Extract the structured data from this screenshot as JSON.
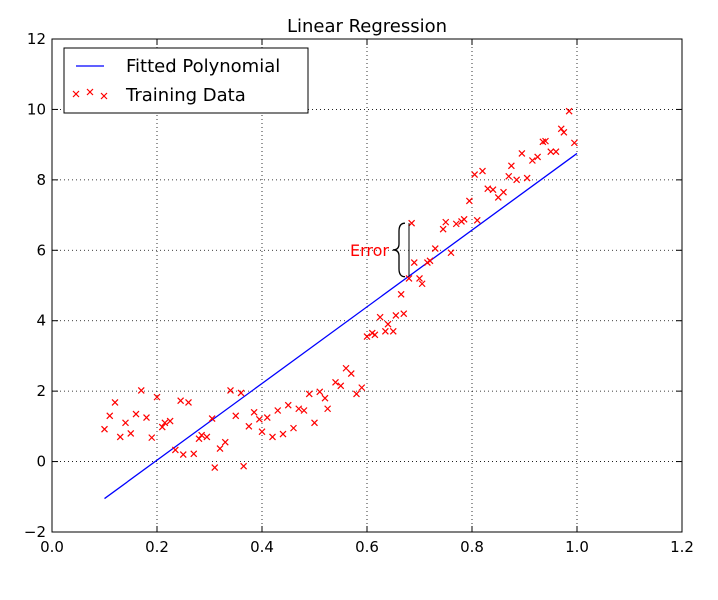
{
  "chart_data": {
    "type": "scatter",
    "title": "Linear Regression",
    "xlabel": "",
    "ylabel": "",
    "xlim": [
      0.0,
      1.2
    ],
    "ylim": [
      -2,
      12
    ],
    "x_ticks": [
      "0.0",
      "0.2",
      "0.4",
      "0.6",
      "0.8",
      "1.0",
      "1.2"
    ],
    "y_ticks": [
      "−2",
      "0",
      "2",
      "4",
      "6",
      "8",
      "10",
      "12"
    ],
    "x_tick_values": [
      0.0,
      0.2,
      0.4,
      0.6,
      0.8,
      1.0,
      1.2
    ],
    "y_tick_values": [
      -2,
      0,
      2,
      4,
      6,
      8,
      10,
      12
    ],
    "grid": true,
    "legend_position": "top-left",
    "series": [
      {
        "name": "Fitted Polynomial",
        "kind": "line",
        "color": "#0000ff",
        "x": [
          0.1,
          1.0
        ],
        "y": [
          -1.05,
          8.75
        ]
      },
      {
        "name": "Training Data",
        "kind": "scatter",
        "marker": "x",
        "color": "#ff0000",
        "points": [
          [
            0.1,
            0.92
          ],
          [
            0.11,
            1.3
          ],
          [
            0.12,
            1.68
          ],
          [
            0.13,
            0.7
          ],
          [
            0.14,
            1.1
          ],
          [
            0.15,
            0.8
          ],
          [
            0.16,
            1.35
          ],
          [
            0.17,
            2.02
          ],
          [
            0.18,
            1.25
          ],
          [
            0.19,
            0.68
          ],
          [
            0.2,
            1.83
          ],
          [
            0.21,
            0.98
          ],
          [
            0.215,
            1.1
          ],
          [
            0.225,
            1.15
          ],
          [
            0.235,
            0.33
          ],
          [
            0.245,
            1.73
          ],
          [
            0.25,
            0.2
          ],
          [
            0.26,
            1.68
          ],
          [
            0.27,
            0.22
          ],
          [
            0.28,
            0.65
          ],
          [
            0.285,
            0.75
          ],
          [
            0.295,
            0.7
          ],
          [
            0.305,
            1.22
          ],
          [
            0.31,
            -0.17
          ],
          [
            0.32,
            0.37
          ],
          [
            0.33,
            0.55
          ],
          [
            0.34,
            2.02
          ],
          [
            0.35,
            1.3
          ],
          [
            0.36,
            1.95
          ],
          [
            0.365,
            -0.13
          ],
          [
            0.375,
            1.0
          ],
          [
            0.385,
            1.4
          ],
          [
            0.395,
            1.2
          ],
          [
            0.4,
            0.85
          ],
          [
            0.41,
            1.25
          ],
          [
            0.42,
            0.7
          ],
          [
            0.43,
            1.45
          ],
          [
            0.44,
            0.78
          ],
          [
            0.45,
            1.6
          ],
          [
            0.46,
            0.95
          ],
          [
            0.47,
            1.5
          ],
          [
            0.48,
            1.45
          ],
          [
            0.49,
            1.92
          ],
          [
            0.5,
            1.1
          ],
          [
            0.51,
            1.98
          ],
          [
            0.52,
            1.8
          ],
          [
            0.525,
            1.5
          ],
          [
            0.54,
            2.25
          ],
          [
            0.55,
            2.15
          ],
          [
            0.56,
            2.65
          ],
          [
            0.57,
            2.5
          ],
          [
            0.58,
            1.92
          ],
          [
            0.59,
            2.1
          ],
          [
            0.6,
            3.55
          ],
          [
            0.61,
            3.65
          ],
          [
            0.615,
            3.6
          ],
          [
            0.625,
            4.1
          ],
          [
            0.635,
            3.7
          ],
          [
            0.64,
            3.9
          ],
          [
            0.65,
            3.7
          ],
          [
            0.655,
            4.15
          ],
          [
            0.665,
            4.75
          ],
          [
            0.67,
            4.2
          ],
          [
            0.68,
            5.2
          ],
          [
            0.685,
            6.77
          ],
          [
            0.69,
            5.65
          ],
          [
            0.7,
            5.2
          ],
          [
            0.705,
            5.05
          ],
          [
            0.715,
            5.65
          ],
          [
            0.72,
            5.7
          ],
          [
            0.73,
            6.05
          ],
          [
            0.745,
            6.6
          ],
          [
            0.75,
            6.8
          ],
          [
            0.76,
            5.93
          ],
          [
            0.77,
            6.75
          ],
          [
            0.78,
            6.82
          ],
          [
            0.785,
            6.88
          ],
          [
            0.795,
            7.4
          ],
          [
            0.805,
            8.15
          ],
          [
            0.81,
            6.85
          ],
          [
            0.82,
            8.25
          ],
          [
            0.83,
            7.75
          ],
          [
            0.84,
            7.72
          ],
          [
            0.85,
            7.5
          ],
          [
            0.86,
            7.65
          ],
          [
            0.87,
            8.1
          ],
          [
            0.875,
            8.4
          ],
          [
            0.885,
            8.0
          ],
          [
            0.895,
            8.75
          ],
          [
            0.905,
            8.05
          ],
          [
            0.915,
            8.55
          ],
          [
            0.925,
            8.65
          ],
          [
            0.935,
            9.08
          ],
          [
            0.94,
            9.1
          ],
          [
            0.95,
            8.8
          ],
          [
            0.96,
            8.8
          ],
          [
            0.97,
            9.45
          ],
          [
            0.975,
            9.35
          ],
          [
            0.985,
            9.95
          ],
          [
            0.995,
            9.05
          ]
        ]
      }
    ],
    "annotation": {
      "text": "Error",
      "color": "#ff0000",
      "x": 0.68,
      "y_low": 5.25,
      "y_high": 6.77
    }
  }
}
